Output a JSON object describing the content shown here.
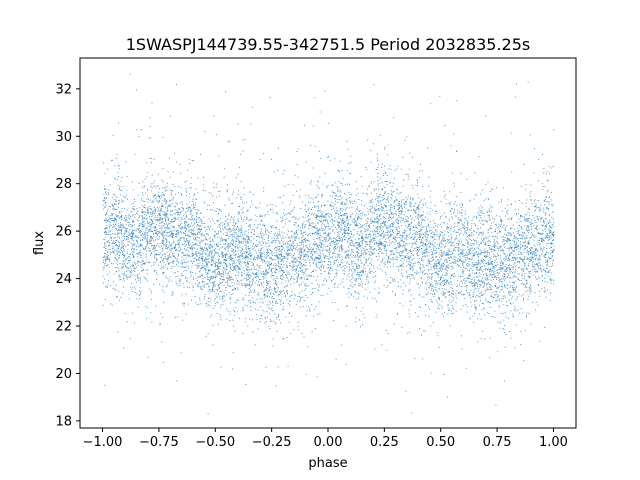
{
  "chart_data": {
    "type": "scatter",
    "title": "1SWASPJ144739.55-342751.5 Period 2032835.25s",
    "xlabel": "phase",
    "ylabel": "flux",
    "xlim": [
      -1.1,
      1.1
    ],
    "ylim": [
      17.7,
      33.3
    ],
    "xticks": [
      -1.0,
      -0.75,
      -0.5,
      -0.25,
      0.0,
      0.25,
      0.5,
      0.75,
      1.0
    ],
    "xtick_labels": [
      "−1.00",
      "−0.75",
      "−0.50",
      "−0.25",
      "0.00",
      "0.25",
      "0.50",
      "0.75",
      "1.00"
    ],
    "yticks": [
      18,
      20,
      22,
      24,
      26,
      28,
      30,
      32
    ],
    "ytick_labels": [
      "18",
      "20",
      "22",
      "24",
      "26",
      "28",
      "30",
      "32"
    ],
    "grid": false,
    "point_color": "#1f77b4",
    "series": [
      {
        "phase": [
          -0.98,
          -0.95,
          -0.9,
          -0.85,
          -0.8,
          -0.75,
          -0.7,
          -0.65,
          -0.6,
          -0.55,
          -0.5,
          -0.45,
          -0.4,
          -0.35,
          -0.3,
          -0.25,
          -0.2,
          -0.15,
          -0.1,
          -0.05,
          0.02,
          0.05,
          0.1,
          0.15,
          0.2,
          0.25,
          0.3,
          0.35,
          0.4,
          0.45,
          0.5,
          0.55,
          0.6,
          0.65,
          0.7,
          0.75,
          0.8,
          0.85,
          0.9,
          0.95,
          0.98
        ],
        "flux": [
          25.8,
          26.2,
          25.6,
          25.4,
          25.9,
          26.3,
          25.8,
          25.7,
          25.9,
          24.8,
          24.7,
          24.9,
          25.2,
          24.8,
          24.9,
          24.6,
          24.7,
          25.0,
          25.3,
          25.6,
          25.8,
          26.2,
          25.6,
          25.4,
          25.9,
          26.3,
          25.8,
          25.7,
          25.9,
          24.8,
          24.7,
          24.9,
          25.2,
          24.8,
          24.9,
          24.6,
          24.7,
          25.0,
          25.3,
          25.6,
          25.8
        ]
      }
    ]
  }
}
